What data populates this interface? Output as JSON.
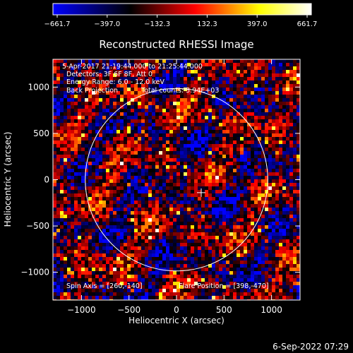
{
  "title": "Reconstructed RHESSI Image",
  "colorbar": {
    "tick_labels": [
      "−661.7",
      "−397.0",
      "−132.3",
      "132.3",
      "397.0",
      "661.7"
    ],
    "colors": [
      "#0000ff",
      "#000000",
      "#ff0000",
      "#ffff00",
      "#ffffff"
    ]
  },
  "info_lines": [
    "5-Apr-2017 21:19:44.000 to 21:25:44.000",
    "Detectors: 3F 6F 8F, Att 0",
    "Energy Range: 6.0 - 12.0 keV"
  ],
  "back_projection_label": "Back Projection",
  "total_counts_label": "Total counts: 3.94E+03",
  "spin_axis_label": "Spin Axis = [260,-140]",
  "flare_position_label": "Flare Position = [398,-470]",
  "x_axis": {
    "label": "Heliocentric X (arcsec)",
    "ticks": [
      -1000,
      -500,
      0,
      500,
      1000
    ],
    "tick_labels": [
      "−1000",
      "−500",
      "0",
      "500",
      "1000"
    ],
    "range": [
      -1300,
      1300
    ]
  },
  "y_axis": {
    "label": "Heliocentric Y (arcsec)",
    "ticks": [
      -1000,
      -500,
      0,
      500,
      1000
    ],
    "tick_labels": [
      "−1000",
      "−500",
      "0",
      "500",
      "1000"
    ],
    "range": [
      -1300,
      1300
    ]
  },
  "solar_limb_radius_arcsec": 960,
  "center_marker_position": [
    260,
    -140
  ],
  "timestamp": "6-Sep-2022 07:29"
}
